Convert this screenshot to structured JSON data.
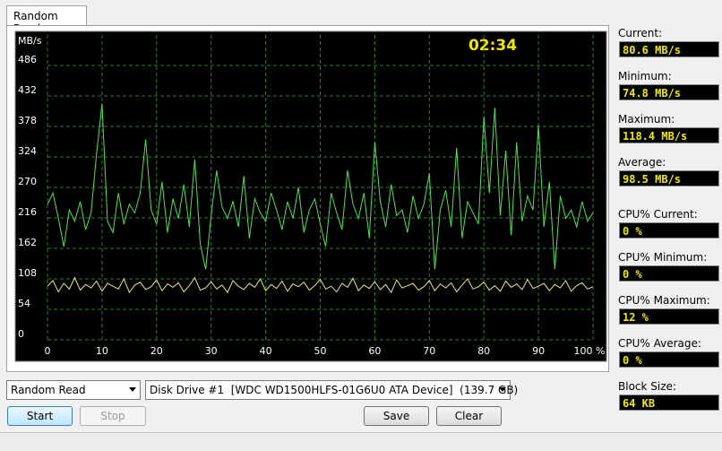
{
  "tab": "Random Read",
  "chart_data": {
    "type": "line",
    "y_unit": "MB/s",
    "timer": "02:34",
    "x": [
      0,
      1,
      2,
      3,
      4,
      5,
      6,
      7,
      8,
      9,
      10,
      11,
      12,
      13,
      14,
      15,
      16,
      17,
      18,
      19,
      20,
      21,
      22,
      23,
      24,
      25,
      26,
      27,
      28,
      29,
      30,
      31,
      32,
      33,
      34,
      35,
      36,
      37,
      38,
      39,
      40,
      41,
      42,
      43,
      44,
      45,
      46,
      47,
      48,
      49,
      50,
      51,
      52,
      53,
      54,
      55,
      56,
      57,
      58,
      59,
      60,
      61,
      62,
      63,
      64,
      65,
      66,
      67,
      68,
      69,
      70,
      71,
      72,
      73,
      74,
      75,
      76,
      77,
      78,
      79,
      80,
      81,
      82,
      83,
      84,
      85,
      86,
      87,
      88,
      89,
      90,
      91,
      92,
      93,
      94,
      95,
      96,
      97,
      98,
      99,
      100
    ],
    "xlim": [
      0,
      100
    ],
    "xticks": [
      0,
      10,
      20,
      30,
      40,
      50,
      60,
      70,
      80,
      90,
      {
        "value": 100,
        "label": "100 %"
      }
    ],
    "ylim": [
      0,
      540
    ],
    "yticks": [
      0,
      54,
      108,
      162,
      216,
      270,
      324,
      378,
      432,
      486
    ],
    "grid": true,
    "series": [
      {
        "color": "#52e052",
        "values": [
          240,
          260,
          215,
          165,
          230,
          210,
          245,
          195,
          225,
          330,
          418,
          210,
          190,
          260,
          205,
          240,
          225,
          260,
          355,
          230,
          205,
          280,
          190,
          250,
          215,
          275,
          200,
          320,
          170,
          125,
          220,
          300,
          235,
          215,
          245,
          200,
          290,
          180,
          250,
          225,
          210,
          260,
          230,
          195,
          245,
          215,
          270,
          190,
          230,
          250,
          205,
          165,
          260,
          225,
          195,
          300,
          240,
          215,
          260,
          180,
          350,
          245,
          200,
          275,
          220,
          230,
          190,
          255,
          215,
          240,
          295,
          125,
          230,
          265,
          200,
          340,
          180,
          245,
          225,
          205,
          395,
          260,
          411,
          220,
          335,
          185,
          350,
          210,
          255,
          230,
          380,
          200,
          280,
          125,
          255,
          215,
          230,
          200,
          245,
          210,
          225
        ]
      },
      {
        "color": "#e6e67a",
        "values": [
          95,
          105,
          85,
          100,
          90,
          110,
          88,
          98,
          92,
          104,
          86,
          100,
          95,
          90,
          108,
          84,
          97,
          102,
          89,
          94,
          106,
          87,
          99,
          93,
          101,
          85,
          96,
          110,
          88,
          92,
          103,
          90,
          97,
          84,
          105,
          95,
          89,
          100,
          93,
          108,
          87,
          98,
          91,
          104,
          86,
          99,
          94,
          102,
          88,
          96,
          107,
          90,
          95,
          85,
          100,
          93,
          109,
          87,
          97,
          91,
          103,
          89,
          98,
          84,
          106,
          92,
          96,
          100,
          88,
          94,
          105,
          87,
          99,
          92,
          101,
          85,
          97,
          108,
          90,
          94,
          102,
          88,
          96,
          86,
          104,
          93,
          99,
          89,
          107,
          91,
          95,
          100,
          87,
          98,
          92,
          105,
          86,
          96,
          101,
          90,
          94
        ]
      }
    ]
  },
  "stats": [
    {
      "label": "Current:",
      "value": "80.6 MB/s"
    },
    {
      "label": "Minimum:",
      "value": "74.8 MB/s"
    },
    {
      "label": "Maximum:",
      "value": "118.4 MB/s"
    },
    {
      "label": "Average:",
      "value": "98.5 MB/s"
    },
    {
      "label": "CPU% Current:",
      "value": "0 %"
    },
    {
      "label": "CPU% Minimum:",
      "value": "0 %"
    },
    {
      "label": "CPU% Maximum:",
      "value": "12 %"
    },
    {
      "label": "CPU% Average:",
      "value": "0 %"
    },
    {
      "label": "Block Size:",
      "value": "64 KB"
    }
  ],
  "controls": {
    "test_select": "Random Read",
    "drive_select": "Disk Drive #1  [WDC WD1500HLFS-01G6U0 ATA Device]  (139.7 GB)",
    "start": "Start",
    "stop": "Stop",
    "save": "Save",
    "clear": "Clear"
  }
}
